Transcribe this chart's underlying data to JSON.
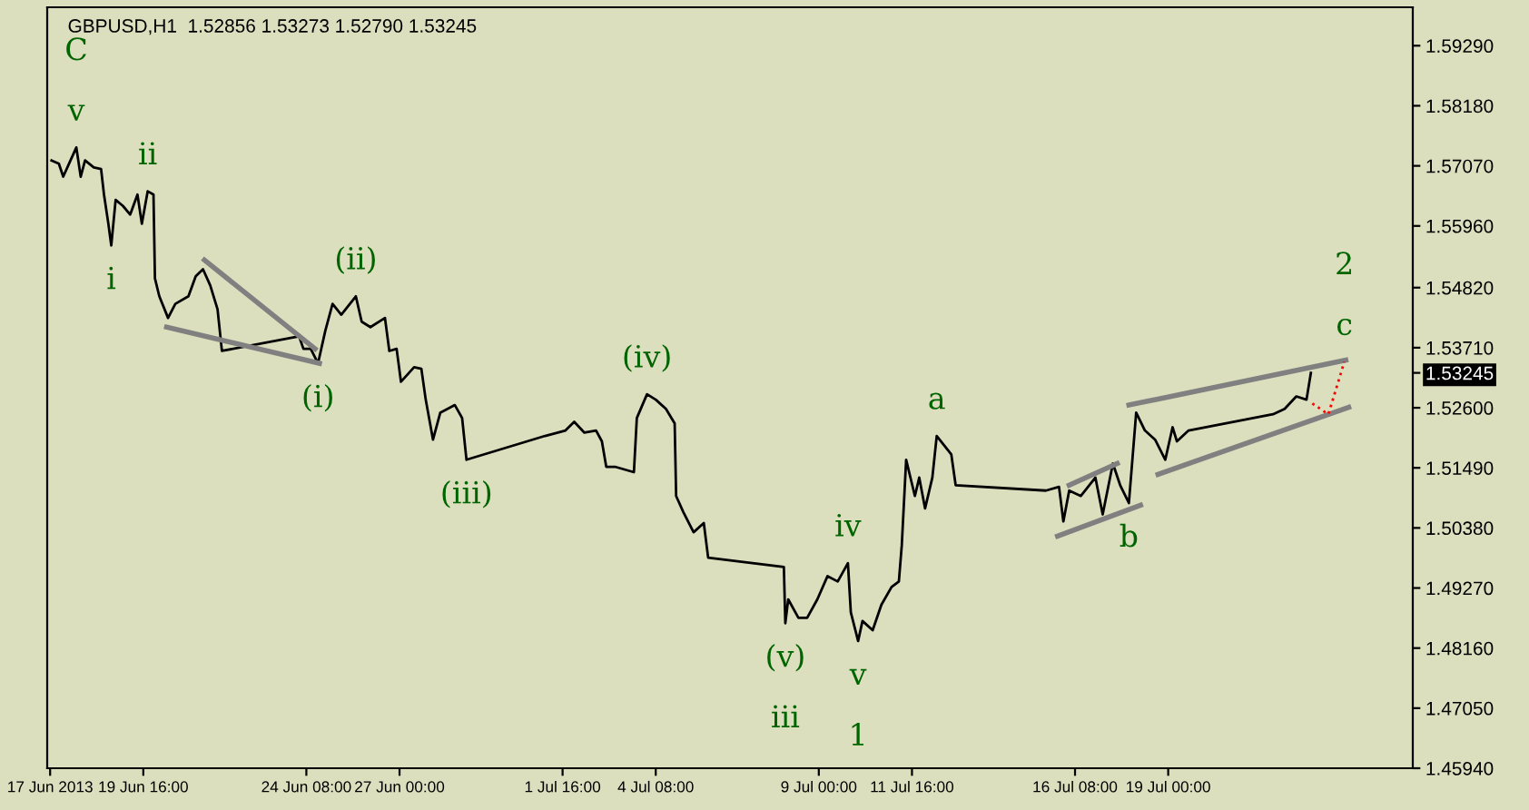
{
  "chart_data": {
    "type": "line",
    "title": "GBPUSD,H1  1.52856 1.53273 1.52790 1.53245",
    "x": [
      "2013-06-17T01:00",
      "2013-06-17T06:00",
      "2013-06-17T09:00",
      "2013-06-17T14:00",
      "2013-06-17T18:00",
      "2013-06-17T21:00",
      "2013-06-18T00:00",
      "2013-06-18T06:00",
      "2013-06-18T11:00",
      "2013-06-18T13:00",
      "2013-06-18T16:00",
      "2013-06-18T18:00",
      "2013-06-18T21:00",
      "2013-06-19T02:00",
      "2013-06-19T07:00",
      "2013-06-19T12:00",
      "2013-06-19T15:00",
      "2013-06-19T19:00",
      "2013-06-19T23:00",
      "2013-06-20T00:00",
      "2013-06-20T03:00",
      "2013-06-20T09:00",
      "2013-06-20T14:00",
      "2013-06-20T23:00",
      "2013-06-21T04:00",
      "2013-06-21T09:00",
      "2013-06-21T14:00",
      "2013-06-21T19:00",
      "2013-06-21T22:00",
      "2013-06-24T03:00",
      "2013-06-24T06:00",
      "2013-06-24T11:00",
      "2013-06-24T16:00",
      "2013-06-24T21:00",
      "2013-06-25T02:00",
      "2013-06-25T08:00",
      "2013-06-25T18:00",
      "2013-06-25T22:00",
      "2013-06-26T04:00",
      "2013-06-26T14:00",
      "2013-06-26T17:00",
      "2013-06-26T22:00",
      "2013-06-27T01:00",
      "2013-06-27T10:00",
      "2013-06-27T15:00",
      "2013-06-27T18:00",
      "2013-06-27T23:00",
      "2013-06-28T04:00",
      "2013-06-28T14:00",
      "2013-06-28T19:00",
      "2013-06-28T22:00",
      "2013-07-01T04:00",
      "2013-07-01T18:00",
      "2013-07-02T00:00",
      "2013-07-02T07:00",
      "2013-07-02T15:00",
      "2013-07-02T19:00",
      "2013-07-02T22:00",
      "2013-07-03T04:00",
      "2013-07-03T17:00",
      "2013-07-03T19:00",
      "2013-07-04T02:00",
      "2013-07-04T08:00",
      "2013-07-04T15:00",
      "2013-07-04T21:00",
      "2013-07-04T22:00",
      "2013-07-05T03:00",
      "2013-07-05T10:00",
      "2013-07-05T17:00",
      "2013-07-05T20:00",
      "2013-07-08T00:00",
      "2013-07-08T01:00",
      "2013-07-08T03:00",
      "2013-07-08T10:00",
      "2013-07-08T16:00",
      "2013-07-08T23:00",
      "2013-07-09T06:00",
      "2013-07-09T13:00",
      "2013-07-09T20:00",
      "2013-07-09T22:00",
      "2013-07-10T03:00",
      "2013-07-10T06:00",
      "2013-07-10T13:00",
      "2013-07-10T19:00",
      "2013-07-11T02:00",
      "2013-07-11T07:00",
      "2013-07-11T09:00",
      "2013-07-11T12:00",
      "2013-07-11T18:00",
      "2013-07-11T21:00",
      "2013-07-12T01:00",
      "2013-07-12T06:00",
      "2013-07-12T09:00",
      "2013-07-12T19:00",
      "2013-07-12T22:00",
      "2013-07-15T12:00",
      "2013-07-15T21:00",
      "2013-07-16T00:00",
      "2013-07-16T04:00",
      "2013-07-16T12:00",
      "2013-07-16T22:00",
      "2013-07-17T03:00",
      "2013-07-17T10:00",
      "2013-07-17T15:00",
      "2013-07-17T21:00",
      "2013-07-18T02:00",
      "2013-07-18T08:00",
      "2013-07-18T15:00",
      "2013-07-18T22:00",
      "2013-07-19T03:00",
      "2013-07-19T06:00",
      "2013-07-19T14:00",
      "2013-07-22T00:00",
      "2013-07-22T08:00",
      "2013-07-22T16:00",
      "2013-07-22T23:00",
      "2013-07-23T02:00"
    ],
    "series": [
      {
        "color": "#000000",
        "values": [
          1.5717,
          1.5711,
          1.5687,
          1.5717,
          1.5741,
          1.5687,
          1.5717,
          1.5704,
          1.5701,
          1.5654,
          1.56,
          1.556,
          1.5644,
          1.5633,
          1.5617,
          1.5654,
          1.56,
          1.566,
          1.5654,
          1.5499,
          1.5466,
          1.5426,
          1.5452,
          1.5466,
          1.5503,
          1.5516,
          1.5486,
          1.5442,
          1.5365,
          1.5392,
          1.5369,
          1.5369,
          1.5342,
          1.5402,
          1.5452,
          1.5432,
          1.5466,
          1.5419,
          1.5409,
          1.5426,
          1.5365,
          1.5369,
          1.5308,
          1.5335,
          1.5332,
          1.5275,
          1.5201,
          1.5251,
          1.5265,
          1.5241,
          1.5164,
          1.5208,
          1.5218,
          1.5234,
          1.5214,
          1.5218,
          1.5198,
          1.5151,
          1.5151,
          1.5141,
          1.5241,
          1.5285,
          1.5275,
          1.5258,
          1.5231,
          1.5097,
          1.5067,
          1.503,
          1.5047,
          1.4983,
          1.4966,
          1.4862,
          1.4906,
          1.4872,
          1.4872,
          1.4906,
          1.4949,
          1.4939,
          1.4973,
          1.4882,
          1.4829,
          1.4866,
          1.4849,
          1.4896,
          1.4929,
          1.4939,
          1.5006,
          1.5164,
          1.5097,
          1.5131,
          1.5074,
          1.5131,
          1.5208,
          1.5174,
          1.5117,
          1.5107,
          1.5114,
          1.505,
          1.5107,
          1.5097,
          1.5131,
          1.5063,
          1.5157,
          1.5117,
          1.5084,
          1.5251,
          1.5218,
          1.5201,
          1.5164,
          1.5224,
          1.5198,
          1.5218,
          1.5248,
          1.5258,
          1.5281,
          1.5275,
          1.53245
        ]
      },
      {
        "color": "#808080",
        "x": [
          "2013-06-20T08:00",
          "2013-06-24T17:00"
        ],
        "values": [
          1.5409,
          1.5342
        ]
      },
      {
        "color": "#808080",
        "x": [
          "2013-06-21T10:00",
          "2013-06-24T14:00"
        ],
        "values": [
          1.5533,
          1.5369
        ]
      },
      {
        "color": "#808080",
        "x": [
          "2013-07-15T20:00",
          "2013-07-18T05:00"
        ],
        "values": [
          1.5023,
          1.508
        ]
      },
      {
        "color": "#808080",
        "x": [
          "2013-07-16T04:00",
          "2013-07-17T13:00"
        ],
        "values": [
          1.5117,
          1.5157
        ]
      },
      {
        "color": "#808080",
        "x": [
          "2013-07-17T21:00",
          "2013-07-24T02:00"
        ],
        "values": [
          1.5265,
          1.5348
        ]
      },
      {
        "color": "#808080",
        "x": [
          "2013-07-18T17:00",
          "2013-07-24T04:00"
        ],
        "values": [
          1.5137,
          1.5261
        ]
      },
      {
        "color": "#ff0000",
        "line_style": "dotted",
        "x": [
          "2013-07-23T03:00",
          "2013-07-23T14:00",
          "2013-07-24T01:00"
        ],
        "values": [
          1.5268,
          1.5248,
          1.5345
        ]
      }
    ],
    "xlim": [
      "2013-06-16T22:00",
      "2013-07-26T00:00"
    ],
    "xticks": [
      {
        "value": "2013-06-17T00:00",
        "label": "17 Jun 2013"
      },
      {
        "value": "2013-06-19T16:00",
        "label": "19 Jun 16:00"
      },
      {
        "value": "2013-06-24T08:00",
        "label": "24 Jun 08:00"
      },
      {
        "value": "2013-06-27T00:00",
        "label": "27 Jun 00:00"
      },
      {
        "value": "2013-07-01T16:00",
        "label": "1 Jul 16:00"
      },
      {
        "value": "2013-07-04T08:00",
        "label": "4 Jul 08:00"
      },
      {
        "value": "2013-07-09T00:00",
        "label": "9 Jul 00:00"
      },
      {
        "value": "2013-07-11T16:00",
        "label": "11 Jul 16:00"
      },
      {
        "value": "2013-07-16T08:00",
        "label": "16 Jul 08:00"
      },
      {
        "value": "2013-07-19T00:00",
        "label": "19 Jul 00:00"
      }
    ],
    "ylim": [
      1.4594,
      1.6
    ],
    "yticks": [
      {
        "value": 1.5929,
        "label": "1.59290"
      },
      {
        "value": 1.5818,
        "label": "1.58180"
      },
      {
        "value": 1.5707,
        "label": "1.57070"
      },
      {
        "value": 1.5596,
        "label": "1.55960"
      },
      {
        "value": 1.5482,
        "label": "1.54820"
      },
      {
        "value": 1.5371,
        "label": "1.53710"
      },
      {
        "value": 1.53245,
        "label": "1.53245"
      },
      {
        "value": 1.526,
        "label": "1.52600"
      },
      {
        "value": 1.5149,
        "label": "1.51490"
      },
      {
        "value": 1.5038,
        "label": "1.50380"
      },
      {
        "value": 1.4927,
        "label": "1.49270"
      },
      {
        "value": 1.4816,
        "label": "1.48160"
      },
      {
        "value": 1.4705,
        "label": "1.47050"
      },
      {
        "value": 1.4594,
        "label": "1.45940"
      }
    ],
    "grid": false,
    "legend": false,
    "marker": "none",
    "line_style": "solid",
    "annotations": [
      {
        "text": "v",
        "x": "2013-06-17T18:00",
        "y": 1.5741
      },
      {
        "text": "C",
        "x": "2013-06-17T18:00",
        "y": 1.5741
      },
      {
        "text": "ii",
        "x": "2013-06-19T19:00",
        "y": 1.566
      },
      {
        "text": "i",
        "x": "2013-06-18T18:00",
        "y": 1.556
      },
      {
        "text": "(ii)",
        "x": "2013-06-25T18:00",
        "y": 1.5466
      },
      {
        "text": "(i)",
        "x": "2013-06-24T16:00",
        "y": 1.5342
      },
      {
        "text": "(iii)",
        "x": "2013-06-28T22:00",
        "y": 1.5164
      },
      {
        "text": "(iv)",
        "x": "2013-07-04T02:00",
        "y": 1.5285
      },
      {
        "text": "(v)",
        "x": "2013-07-08T01:00",
        "y": 1.4862
      },
      {
        "text": "iii",
        "x": "2013-07-08T01:00",
        "y": 1.4862
      },
      {
        "text": "iv",
        "x": "2013-07-09T20:00",
        "y": 1.4973
      },
      {
        "text": "v",
        "x": "2013-07-10T03:00",
        "y": 1.4829
      },
      {
        "text": "1",
        "x": "2013-07-10T03:00",
        "y": 1.4829
      },
      {
        "text": "a",
        "x": "2013-07-12T09:00",
        "y": 1.5208
      },
      {
        "text": "b",
        "x": "2013-07-17T21:00",
        "y": 1.5084
      },
      {
        "text": "c",
        "x": "2013-07-24T01:00",
        "y": 1.5345
      },
      {
        "text": "2",
        "x": "2013-07-24T01:00",
        "y": 1.5345
      }
    ]
  }
}
